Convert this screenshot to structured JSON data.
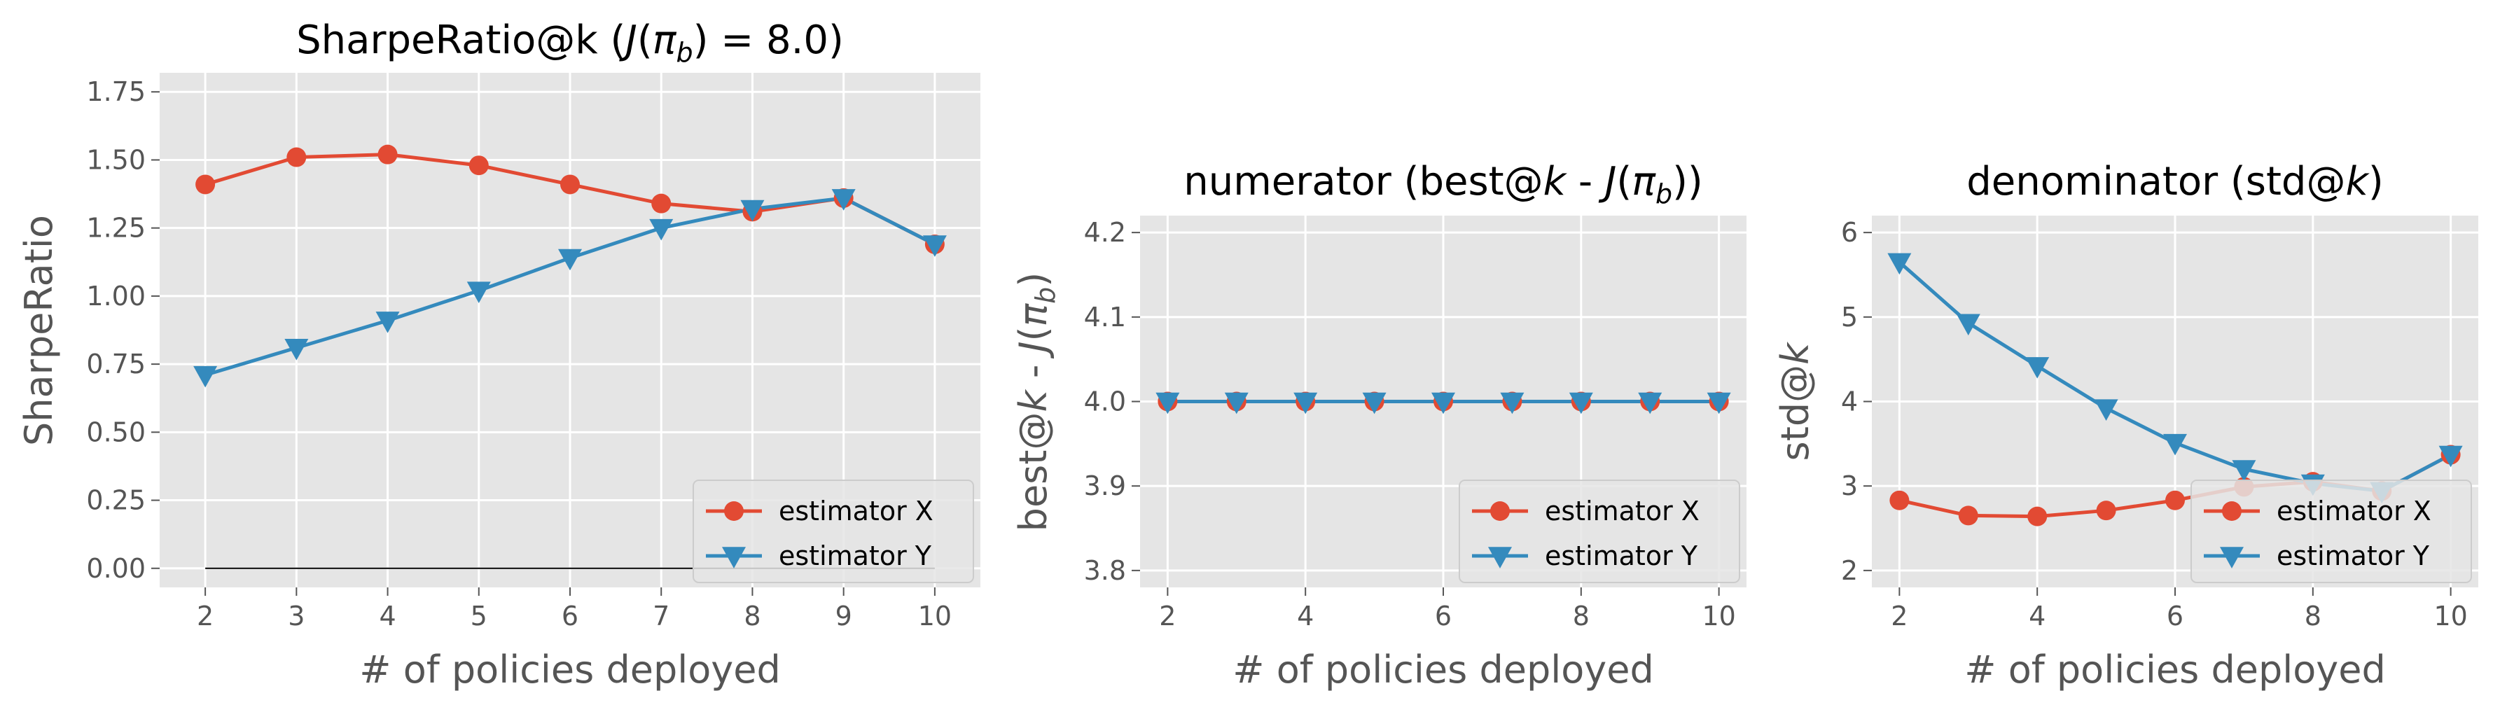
{
  "chart_data": [
    {
      "type": "line",
      "title": "SharpeRatio@k (J(π_b) = 8.0)",
      "xlabel": "# of policies deployed",
      "ylabel": "SharpeRatio",
      "x": [
        2,
        3,
        4,
        5,
        6,
        7,
        8,
        9,
        10
      ],
      "xlim": [
        1.5,
        10.5
      ],
      "ylim": [
        -0.07,
        1.82
      ],
      "yticks": [
        "0.00",
        "0.25",
        "0.50",
        "0.75",
        "1.00",
        "1.25",
        "1.50",
        "1.75"
      ],
      "xticks": [
        "2",
        "3",
        "4",
        "5",
        "6",
        "7",
        "8",
        "9",
        "10"
      ],
      "grid": true,
      "legend": "lower right",
      "reference_line": {
        "y": 0.0,
        "x": [
          2,
          10
        ],
        "color": "#000000"
      },
      "series": [
        {
          "name": "estimator X",
          "color": "#E24A33",
          "marker": "circle",
          "values": [
            1.41,
            1.51,
            1.52,
            1.48,
            1.41,
            1.34,
            1.31,
            1.36,
            1.19
          ]
        },
        {
          "name": "estimator Y",
          "color": "#348ABD",
          "marker": "triangle-down",
          "values": [
            0.71,
            0.81,
            0.91,
            1.02,
            1.14,
            1.25,
            1.32,
            1.36,
            1.19
          ]
        }
      ]
    },
    {
      "type": "line",
      "title": "numerator (best@k - J(π_b))",
      "xlabel": "# of policies deployed",
      "ylabel": "best@k - J(π_b)",
      "x": [
        2,
        3,
        4,
        5,
        6,
        7,
        8,
        9,
        10
      ],
      "xlim": [
        1.6,
        10.4
      ],
      "ylim": [
        3.78,
        4.22
      ],
      "yticks": [
        "3.8",
        "3.9",
        "4.0",
        "4.1",
        "4.2"
      ],
      "xticks": [
        "2",
        "4",
        "6",
        "8",
        "10"
      ],
      "grid": true,
      "legend": "lower right",
      "series": [
        {
          "name": "estimator X",
          "color": "#E24A33",
          "marker": "circle",
          "values": [
            4.0,
            4.0,
            4.0,
            4.0,
            4.0,
            4.0,
            4.0,
            4.0,
            4.0
          ]
        },
        {
          "name": "estimator Y",
          "color": "#348ABD",
          "marker": "triangle-down",
          "values": [
            4.0,
            4.0,
            4.0,
            4.0,
            4.0,
            4.0,
            4.0,
            4.0,
            4.0
          ]
        }
      ]
    },
    {
      "type": "line",
      "title": "denominator (std@k)",
      "xlabel": "# of policies deployed",
      "ylabel": "std@k",
      "x": [
        2,
        3,
        4,
        5,
        6,
        7,
        8,
        9,
        10
      ],
      "xlim": [
        1.6,
        10.4
      ],
      "ylim": [
        1.8,
        6.2
      ],
      "yticks": [
        "2",
        "3",
        "4",
        "5",
        "6"
      ],
      "xticks": [
        "2",
        "4",
        "6",
        "8",
        "10"
      ],
      "grid": true,
      "legend": "lower right",
      "series": [
        {
          "name": "estimator X",
          "color": "#E24A33",
          "marker": "circle",
          "values": [
            2.83,
            2.65,
            2.64,
            2.71,
            2.83,
            2.99,
            3.05,
            2.94,
            3.37
          ]
        },
        {
          "name": "estimator Y",
          "color": "#348ABD",
          "marker": "triangle-down",
          "values": [
            5.65,
            4.93,
            4.42,
            3.92,
            3.51,
            3.2,
            3.03,
            2.94,
            3.37
          ]
        }
      ]
    }
  ]
}
